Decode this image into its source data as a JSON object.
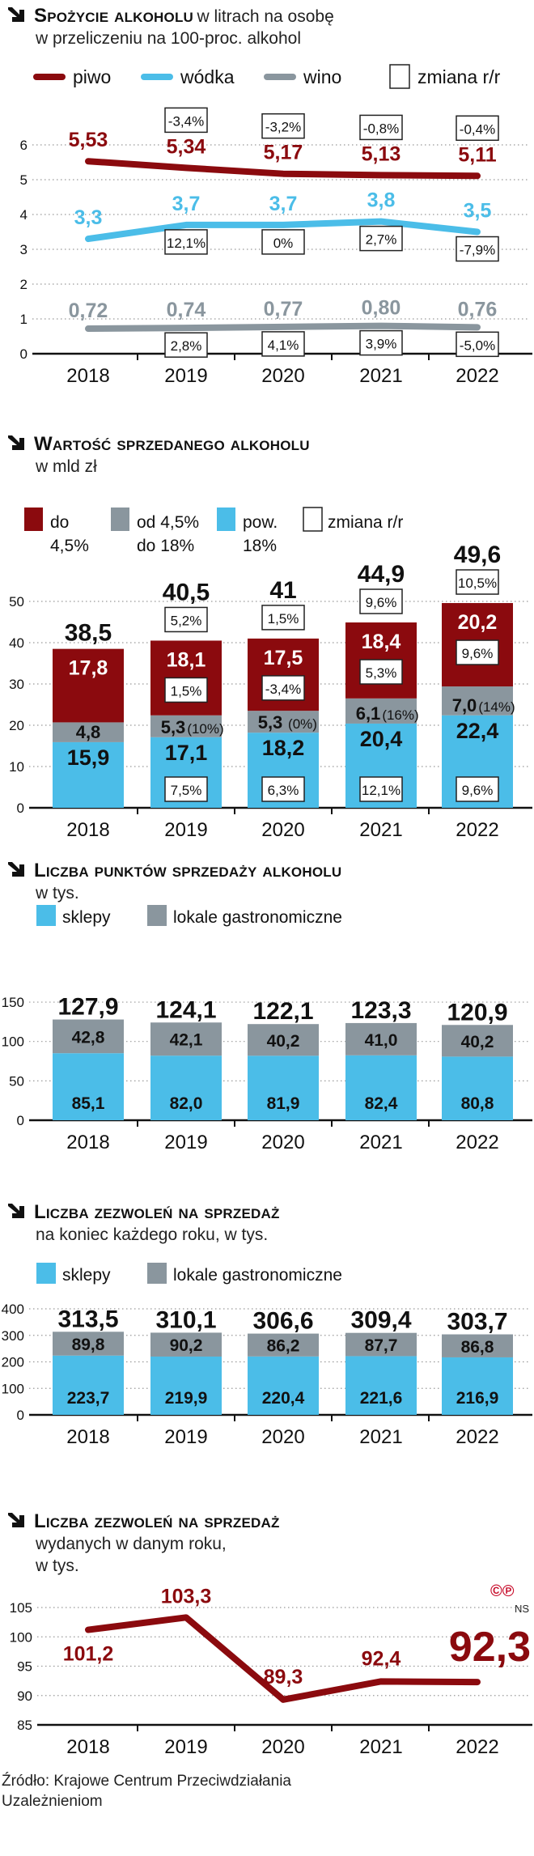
{
  "colors": {
    "red": "#8b0a0e",
    "blue": "#4bbde8",
    "gray": "#8a969e",
    "black": "#111111"
  },
  "years": [
    "2018",
    "2019",
    "2020",
    "2021",
    "2022"
  ],
  "chart_data": [
    {
      "type": "line",
      "title": "Spożycie alkoholu",
      "title_rest": "w litrach na osobę",
      "subtitle": "w przeliczeniu na 100-proc. alkohol",
      "categories": [
        "2018",
        "2019",
        "2020",
        "2021",
        "2022"
      ],
      "ylim": [
        0,
        6
      ],
      "yticks": [
        "0",
        "1",
        "2",
        "3",
        "4",
        "5",
        "6"
      ],
      "grid": true,
      "legend": {
        "box_label": "zmiana r/r"
      },
      "series": [
        {
          "name": "piwo",
          "color": "#8b0a0e",
          "values": [
            5.53,
            5.34,
            5.17,
            5.13,
            5.11
          ],
          "labels": [
            "5,53",
            "5,34",
            "5,17",
            "5,13",
            "5,11"
          ],
          "changes": [
            "",
            "-3,4%",
            "-3,2%",
            "-0,8%",
            "-0,4%"
          ]
        },
        {
          "name": "wódka",
          "color": "#4bbde8",
          "values": [
            3.3,
            3.7,
            3.7,
            3.8,
            3.5
          ],
          "labels": [
            "3,3",
            "3,7",
            "3,7",
            "3,8",
            "3,5"
          ],
          "changes": [
            "",
            "12,1%",
            "0%",
            "2,7%",
            "-7,9%"
          ]
        },
        {
          "name": "wino",
          "color": "#8a969e",
          "values": [
            0.72,
            0.74,
            0.77,
            0.8,
            0.76
          ],
          "labels": [
            "0,72",
            "0,74",
            "0,77",
            "0,80",
            "0,76"
          ],
          "changes": [
            "",
            "2,8%",
            "4,1%",
            "3,9%",
            "-5,0%"
          ]
        }
      ]
    },
    {
      "type": "bar",
      "stacked": true,
      "title": "Wartość sprzedanego alkoholu",
      "subtitle": "w mld zł",
      "categories": [
        "2018",
        "2019",
        "2020",
        "2021",
        "2022"
      ],
      "ylim": [
        0,
        50
      ],
      "yticks": [
        "0",
        "10",
        "20",
        "30",
        "40",
        "50"
      ],
      "grid": true,
      "legend": {
        "box_label": "zmiana r/r"
      },
      "totals": [
        "38,5",
        "40,5",
        "41",
        "44,9",
        "49,6"
      ],
      "total_changes": [
        "",
        "5,2%",
        "1,5%",
        "9,6%",
        "10,5%"
      ],
      "series": [
        {
          "name_1": "pow.",
          "name_2": "18%",
          "color": "#4bbde8",
          "values": [
            15.9,
            17.1,
            18.2,
            20.4,
            22.4
          ],
          "labels": [
            "15,9",
            "17,1",
            "18,2",
            "20,4",
            "22,4"
          ],
          "changes": [
            "",
            "7,5%",
            "6,3%",
            "12,1%",
            "9,6%"
          ]
        },
        {
          "name_1": "od 4,5%",
          "name_2": "do 18%",
          "color": "#8a969e",
          "values": [
            4.8,
            5.3,
            5.3,
            6.1,
            7.0
          ],
          "labels": [
            "4,8",
            "5,3",
            "5,3",
            "6,1",
            "7,0"
          ],
          "changes": [
            "",
            "(10%)",
            "(0%)",
            "(16%)",
            "(14%)"
          ]
        },
        {
          "name_1": "do",
          "name_2": "4,5%",
          "color": "#8b0a0e",
          "values": [
            17.8,
            18.1,
            17.5,
            18.4,
            20.2
          ],
          "labels": [
            "17,8",
            "18,1",
            "17,5",
            "18,4",
            "20,2"
          ],
          "changes": [
            "",
            "1,5%",
            "-3,4%",
            "5,3%",
            "9,6%"
          ]
        }
      ]
    },
    {
      "type": "bar",
      "stacked": true,
      "title": "Liczba punktów sprzedaży alkoholu",
      "subtitle": "w tys.",
      "categories": [
        "2018",
        "2019",
        "2020",
        "2021",
        "2022"
      ],
      "ylim": [
        0,
        150
      ],
      "yticks": [
        "0",
        "50",
        "100",
        "150"
      ],
      "grid": true,
      "totals": [
        "127,9",
        "124,1",
        "122,1",
        "123,3",
        "120,9"
      ],
      "series": [
        {
          "name": "sklepy",
          "color": "#4bbde8",
          "values": [
            85.1,
            82.0,
            81.9,
            82.4,
            80.8
          ],
          "labels": [
            "85,1",
            "82,0",
            "81,9",
            "82,4",
            "80,8"
          ]
        },
        {
          "name": "lokale gastronomiczne",
          "color": "#8a969e",
          "values": [
            42.8,
            42.1,
            40.2,
            41.0,
            40.2
          ],
          "labels": [
            "42,8",
            "42,1",
            "40,2",
            "41,0",
            "40,2"
          ]
        }
      ]
    },
    {
      "type": "bar",
      "stacked": true,
      "title": "Liczba zezwoleń na sprzedaż",
      "subtitle": "na koniec każdego roku, w tys.",
      "categories": [
        "2018",
        "2019",
        "2020",
        "2021",
        "2022"
      ],
      "ylim": [
        0,
        400
      ],
      "yticks": [
        "0",
        "100",
        "200",
        "300",
        "400"
      ],
      "grid": true,
      "totals": [
        "313,5",
        "310,1",
        "306,6",
        "309,4",
        "303,7"
      ],
      "series": [
        {
          "name": "sklepy",
          "color": "#4bbde8",
          "values": [
            223.7,
            219.9,
            220.4,
            221.6,
            216.9
          ],
          "labels": [
            "223,7",
            "219,9",
            "220,4",
            "221,6",
            "216,9"
          ]
        },
        {
          "name": "lokale gastronomiczne",
          "color": "#8a969e",
          "values": [
            89.8,
            90.2,
            86.2,
            87.7,
            86.8
          ],
          "labels": [
            "89,8",
            "90,2",
            "86,2",
            "87,7",
            "86,8"
          ]
        }
      ]
    },
    {
      "type": "line",
      "title": "Liczba zezwoleń na sprzedaż",
      "subtitle_1": "wydanych w danym roku,",
      "subtitle_2": "w tys.",
      "categories": [
        "2018",
        "2019",
        "2020",
        "2021",
        "2022"
      ],
      "ylim": [
        85,
        105
      ],
      "yticks": [
        "85",
        "90",
        "95",
        "100",
        "105"
      ],
      "grid": true,
      "series": [
        {
          "color": "#8b0a0e",
          "values": [
            101.2,
            103.3,
            89.3,
            92.4,
            92.3
          ],
          "labels": [
            "101,2",
            "103,3",
            "89,3",
            "92,4",
            "92,3"
          ]
        }
      ]
    }
  ],
  "copyright_mark": "©℗",
  "agency": "NS",
  "source_1": "Źródło: Krajowe Centrum Przeciwdziałania",
  "source_2": "Uzależnieniom"
}
